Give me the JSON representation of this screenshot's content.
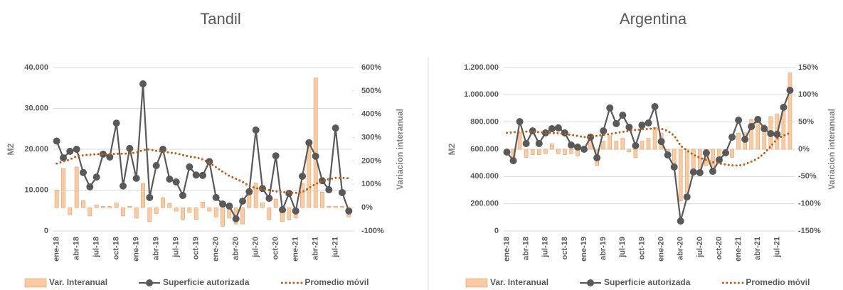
{
  "chart_data": [
    {
      "type": "combo",
      "title": "Tandil",
      "y_label": "M2",
      "y2_label": "Variacion interanual",
      "legend": "bottom",
      "grid": true,
      "categories": [
        "ene-18",
        null,
        null,
        "abr-18",
        null,
        null,
        "jul-18",
        null,
        null,
        "oct-18",
        null,
        null,
        "ene-19",
        null,
        null,
        "abr-19",
        null,
        null,
        "jul-19",
        null,
        null,
        "oct-19",
        null,
        null,
        "ene-20",
        null,
        null,
        "abr-20",
        null,
        null,
        "jul-20",
        null,
        null,
        "oct-20",
        null,
        null,
        "ene-21",
        null,
        null,
        "abr-21",
        null,
        null,
        "jul-21",
        null,
        null
      ],
      "ylim": [
        0,
        40000
      ],
      "yticks": [
        0,
        {
          "value": 10000,
          "label": "10.000"
        },
        {
          "value": 20000,
          "label": "20.000"
        },
        {
          "value": 30000,
          "label": "30.000"
        },
        {
          "value": 40000,
          "label": "40.000"
        }
      ],
      "y2lim": [
        -100,
        600
      ],
      "y2ticks": [
        {
          "value": -100,
          "label": "-100%"
        },
        {
          "value": 0,
          "label": "0%"
        },
        {
          "value": 100,
          "label": "100%"
        },
        {
          "value": 200,
          "label": "200%"
        },
        {
          "value": 300,
          "label": "300%"
        },
        {
          "value": 400,
          "label": "400%"
        },
        {
          "value": 500,
          "label": "500%"
        },
        {
          "value": 600,
          "label": "600%"
        }
      ],
      "series": [
        {
          "name": "Var. Interanual",
          "type": "bar",
          "axis": "y2",
          "color": "#f8cba0",
          "values": [
            75,
            168,
            -30,
            174,
            30,
            -36,
            12,
            5,
            5,
            20,
            -36,
            6,
            -45,
            104,
            -60,
            -25,
            43,
            18,
            -15,
            -50,
            -20,
            -50,
            24,
            -15,
            -40,
            -80,
            -45,
            -70,
            -70,
            82,
            104,
            21,
            -50,
            37,
            -60,
            -50,
            -45,
            104,
            287,
            555,
            67,
            6,
            6,
            5,
            -40
          ]
        },
        {
          "name": "Superficie autorizada",
          "type": "line",
          "marker": true,
          "color": "#595959",
          "values": [
            22000,
            17900,
            19500,
            20000,
            14300,
            10800,
            13200,
            18800,
            18100,
            26400,
            11000,
            20200,
            12900,
            36000,
            8200,
            16000,
            20000,
            12700,
            12000,
            8700,
            15700,
            13700,
            13600,
            17000,
            8200,
            6600,
            6100,
            3000,
            7300,
            9600,
            24700,
            10400,
            8000,
            18400,
            5200,
            9200,
            4900,
            13400,
            21600,
            18300,
            12300,
            10100,
            25200,
            9400,
            4900
          ]
        },
        {
          "name": "Promedio móvil",
          "type": "line",
          "dotted": true,
          "color": "#c55a11",
          "values": [
            16500,
            17000,
            17500,
            18300,
            18500,
            18700,
            18800,
            18800,
            18800,
            18900,
            18900,
            19000,
            19200,
            19800,
            20000,
            19600,
            19400,
            19200,
            19000,
            18600,
            18200,
            18000,
            17500,
            16700,
            15600,
            14500,
            13500,
            12800,
            12000,
            11000,
            10500,
            10200,
            10000,
            9700,
            9500,
            9400,
            9300,
            9500,
            10500,
            11500,
            12200,
            12700,
            13000,
            13000,
            12900
          ]
        }
      ]
    },
    {
      "type": "combo",
      "title": "Argentina",
      "y_label": "M2",
      "y2_label": "Variacion interanual",
      "legend": "bottom",
      "grid": true,
      "categories": [
        "ene-18",
        null,
        null,
        "abr-18",
        null,
        null,
        "jul-18",
        null,
        null,
        "oct-18",
        null,
        null,
        "ene-19",
        null,
        null,
        "abr-19",
        null,
        null,
        "jul-19",
        null,
        null,
        "oct-19",
        null,
        null,
        "ene-20",
        null,
        null,
        "abr-20",
        null,
        null,
        "jul-20",
        null,
        null,
        "oct-20",
        null,
        null,
        "ene-21",
        null,
        null,
        "abr-21",
        null,
        null,
        "jul-21",
        null,
        null
      ],
      "ylim": [
        0,
        1200000
      ],
      "yticks": [
        0,
        {
          "value": 200000,
          "label": "200.000"
        },
        {
          "value": 400000,
          "label": "400.000"
        },
        {
          "value": 600000,
          "label": "600.000"
        },
        {
          "value": 800000,
          "label": "800.000"
        },
        {
          "value": 1000000,
          "label": "1.000.000"
        },
        {
          "value": 1200000,
          "label": "1.200.000"
        }
      ],
      "y2lim": [
        -150,
        150
      ],
      "y2ticks": [
        {
          "value": -150,
          "label": "-150%"
        },
        {
          "value": -100,
          "label": "-100%"
        },
        {
          "value": -50,
          "label": "-50%"
        },
        {
          "value": 0,
          "label": "0%"
        },
        {
          "value": 50,
          "label": "50%"
        },
        {
          "value": 100,
          "label": "100%"
        },
        {
          "value": 150,
          "label": "150%"
        }
      ],
      "series": [
        {
          "name": "Var. Interanual",
          "type": "bar",
          "axis": "y2",
          "color": "#f8cba0",
          "values": [
            -10,
            -20,
            30,
            -15,
            -10,
            -10,
            -8,
            10,
            -8,
            -10,
            -8,
            -12,
            5,
            20,
            -30,
            15,
            25,
            15,
            20,
            -5,
            -15,
            15,
            20,
            40,
            30,
            -10,
            -30,
            -95,
            -80,
            -40,
            -45,
            -30,
            -40,
            -20,
            -10,
            -15,
            30,
            30,
            55,
            60,
            45,
            60,
            65,
            70,
            140
          ]
        },
        {
          "name": "Superficie autorizada",
          "type": "line",
          "marker": true,
          "color": "#595959",
          "values": [
            579000,
            516000,
            803000,
            642000,
            735000,
            642000,
            720000,
            751000,
            757000,
            720000,
            631000,
            616000,
            600000,
            689000,
            537000,
            735000,
            903000,
            788000,
            850000,
            762000,
            626000,
            777000,
            793000,
            913000,
            657000,
            558000,
            470000,
            73000,
            250000,
            433000,
            428000,
            574000,
            438000,
            522000,
            574000,
            689000,
            814000,
            673000,
            767000,
            819000,
            751000,
            715000,
            710000,
            908000,
            1033000
          ]
        },
        {
          "name": "Promedio móvil",
          "type": "line",
          "dotted": true,
          "color": "#c55a11",
          "values": [
            720000,
            725000,
            728000,
            730000,
            728000,
            725000,
            722000,
            720000,
            718000,
            712000,
            705000,
            698000,
            690000,
            692000,
            698000,
            705000,
            712000,
            720000,
            728000,
            735000,
            742000,
            746000,
            750000,
            752000,
            751000,
            735000,
            700000,
            626000,
            590000,
            560000,
            537000,
            520000,
            505000,
            496000,
            488000,
            482000,
            480000,
            490000,
            510000,
            532000,
            570000,
            620000,
            678000,
            700000,
            720000
          ]
        }
      ]
    }
  ]
}
